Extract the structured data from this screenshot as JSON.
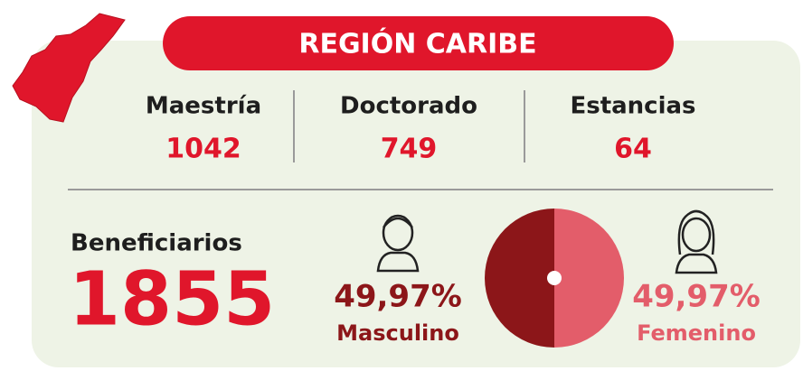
{
  "title": "REGIÓN CARIBE",
  "stats": [
    {
      "label": "Maestría",
      "value": 1042
    },
    {
      "label": "Doctorado",
      "value": 749
    },
    {
      "label": "Estancias",
      "value": 64
    }
  ],
  "beneficiaries": {
    "label": "Beneficiarios",
    "value": 1855
  },
  "gender_chart": {
    "type": "pie",
    "series": [
      {
        "name": "Masculino",
        "value": 49.97,
        "value_label": "49,97%",
        "color": "#8c1619"
      },
      {
        "name": "Femenino",
        "value": 49.97,
        "value_label": "49,97%",
        "color": "#e35d6a"
      }
    ]
  }
}
